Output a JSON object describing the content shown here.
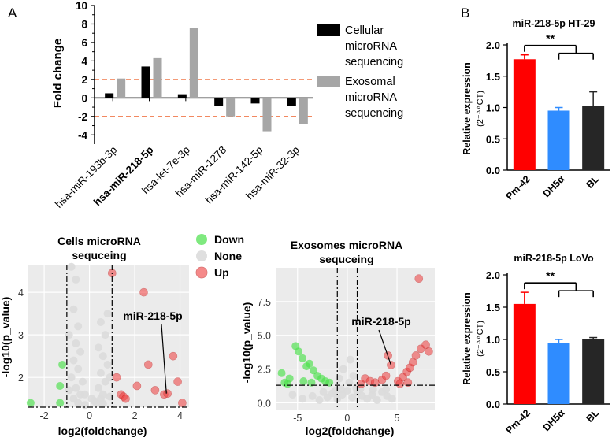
{
  "panel_labels": {
    "a": "A",
    "b": "B"
  },
  "chart_data": [
    {
      "id": "fold-change-bar",
      "type": "bar",
      "ylabel": "Fold change",
      "ylim": [
        -5,
        10
      ],
      "yticks": [
        "10",
        "8",
        "6",
        "4",
        "2",
        "0",
        "-2",
        "-4"
      ],
      "categories": [
        "hsa-miR-193b-3p",
        "hsa-miR-218-5p",
        "hsa-let-7e-3p",
        "hsa-miR-1278",
        "hsa-miR-142-5p",
        "hsa-miR-32-3p"
      ],
      "highlight_category": "hsa-miR-218-5p",
      "series": [
        {
          "name": "Cellular microRNA sequencing",
          "legend_lines": [
            "Cellular",
            "microRNA",
            "sequencing"
          ],
          "color": "#000000",
          "values": [
            0.5,
            3.4,
            0.4,
            -0.9,
            -0.6,
            -0.9
          ]
        },
        {
          "name": "Exosomal microRNA sequencing",
          "legend_lines": [
            "Exosomal",
            "microRNA",
            "sequencing"
          ],
          "color": "#a6a6a6",
          "values": [
            2.1,
            4.3,
            7.6,
            -2.0,
            -3.6,
            -2.8
          ]
        }
      ],
      "threshold_lines": [
        2,
        -2
      ],
      "threshold_color": "#f0784a"
    },
    {
      "id": "ht29-bar",
      "type": "bar",
      "title": "miR-218-5p HT-29",
      "ylabel": "Relative expression",
      "ylabel_sub": "(2⁻ᐞᐞCT)",
      "ylim": [
        0,
        2.0
      ],
      "yticks": [
        "2.0",
        "1.5",
        "1.0",
        "0.5",
        "0.0"
      ],
      "categories": [
        "Pm-42",
        "DH5α",
        "BL"
      ],
      "values": [
        1.77,
        0.95,
        1.02
      ],
      "errors": [
        0.07,
        0.05,
        0.23
      ],
      "colors": [
        "#ff0000",
        "#2f8cff",
        "#262626"
      ],
      "significance": "**"
    },
    {
      "id": "lovo-bar",
      "type": "bar",
      "title": "miR-218-5p LoVo",
      "ylabel": "Relative expression",
      "ylabel_sub": "(2⁻ᐞᐞCT)",
      "ylim": [
        0,
        2.0
      ],
      "yticks": [
        "2.0",
        "1.5",
        "1.0",
        "0.5",
        "0.0"
      ],
      "categories": [
        "Pm-42",
        "DH5α",
        "BL"
      ],
      "values": [
        1.55,
        0.95,
        1.0
      ],
      "errors": [
        0.18,
        0.05,
        0.03
      ],
      "colors": [
        "#ff0000",
        "#2f8cff",
        "#262626"
      ],
      "significance": "**"
    },
    {
      "id": "cells-volcano",
      "type": "scatter",
      "title_lines": [
        "Cells microRNA",
        "sequceing"
      ],
      "xlabel": "log2(foldchange)",
      "ylabel": "-log10(p_value)",
      "xlim": [
        -2.7,
        4.4
      ],
      "ylim": [
        1.3,
        4.65
      ],
      "xticks": [
        "-2",
        "0",
        "2",
        "4"
      ],
      "yticks": [
        "2",
        "3",
        "4"
      ],
      "vlines": [
        -1,
        1
      ],
      "hline": 1.3,
      "annotation": "miR-218-5p",
      "annotation_point": [
        3.4,
        1.62
      ],
      "legend": [
        {
          "label": "Down",
          "color": "#49e049"
        },
        {
          "label": "None",
          "color": "#dcdcdc"
        },
        {
          "label": "Up",
          "color": "#ef3c3c"
        }
      ],
      "points": {
        "down": [
          [
            -2.6,
            1.4
          ],
          [
            -1.2,
            2.3
          ],
          [
            -1.3,
            1.8
          ],
          [
            -1.3,
            1.4
          ]
        ],
        "up": [
          [
            1.0,
            4.45
          ],
          [
            1.2,
            2.0
          ],
          [
            1.4,
            1.6
          ],
          [
            1.5,
            1.55
          ],
          [
            1.6,
            1.5
          ],
          [
            2.1,
            1.8
          ],
          [
            2.4,
            4.0
          ],
          [
            2.6,
            2.3
          ],
          [
            2.9,
            1.7
          ],
          [
            3.3,
            1.6
          ],
          [
            3.45,
            1.62
          ],
          [
            3.7,
            2.5
          ],
          [
            3.9,
            1.9
          ],
          [
            4.1,
            1.4
          ]
        ],
        "none": [
          [
            -0.8,
            4.6
          ],
          [
            -0.6,
            4.3
          ],
          [
            -0.7,
            3.6
          ],
          [
            -0.5,
            3.2
          ],
          [
            -0.6,
            2.8
          ],
          [
            -0.4,
            2.6
          ],
          [
            -0.7,
            2.4
          ],
          [
            -0.5,
            2.2
          ],
          [
            -0.8,
            2.0
          ],
          [
            -0.3,
            1.9
          ],
          [
            -0.6,
            1.75
          ],
          [
            -0.4,
            1.6
          ],
          [
            -0.7,
            1.5
          ],
          [
            -0.5,
            1.4
          ],
          [
            -0.2,
            1.35
          ],
          [
            0.3,
            1.4
          ],
          [
            0.5,
            1.5
          ],
          [
            0.6,
            1.6
          ],
          [
            0.4,
            1.75
          ],
          [
            0.7,
            1.9
          ],
          [
            0.5,
            2.1
          ],
          [
            0.8,
            2.3
          ],
          [
            0.6,
            2.5
          ],
          [
            0.4,
            2.7
          ],
          [
            0.7,
            3.0
          ],
          [
            0.5,
            3.3
          ],
          [
            0.8,
            3.5
          ],
          [
            0.6,
            1.38
          ],
          [
            0.2,
            1.45
          ],
          [
            0.9,
            1.55
          ],
          [
            -0.9,
            1.7
          ],
          [
            -0.2,
            1.6
          ],
          [
            0.1,
            1.5
          ],
          [
            0.9,
            2.0
          ],
          [
            -0.9,
            3.0
          ]
        ]
      }
    },
    {
      "id": "exosomes-volcano",
      "type": "scatter",
      "title_lines": [
        "Exosomes microRNA",
        "sequceing"
      ],
      "xlabel": "log2(foldchange)",
      "ylabel": "-log10(p_value)",
      "xlim": [
        -7.2,
        8.8
      ],
      "ylim": [
        -0.5,
        10
      ],
      "xticks": [
        "-5",
        "0",
        "5"
      ],
      "yticks": [
        "0.0",
        "2.5",
        "5.0",
        "7.5"
      ],
      "vlines": [
        -1,
        1
      ],
      "hline": 1.3,
      "annotation": "miR-218-5p",
      "annotation_point": [
        4.4,
        2.8
      ],
      "points": {
        "down": [
          [
            -6.6,
            2.2
          ],
          [
            -6.3,
            1.5
          ],
          [
            -5.8,
            1.8
          ],
          [
            -5.2,
            4.2
          ],
          [
            -4.9,
            3.8
          ],
          [
            -4.5,
            3.3
          ],
          [
            -4.1,
            2.7
          ],
          [
            -3.8,
            2.9
          ],
          [
            -3.4,
            2.4
          ],
          [
            -3.0,
            2.0
          ],
          [
            -2.6,
            1.8
          ],
          [
            -2.2,
            1.6
          ],
          [
            -1.8,
            1.5
          ],
          [
            -4.4,
            1.6
          ],
          [
            -3.6,
            1.5
          ],
          [
            -6.0,
            1.4
          ]
        ],
        "up": [
          [
            1.4,
            1.4
          ],
          [
            1.8,
            1.8
          ],
          [
            2.3,
            1.6
          ],
          [
            2.8,
            1.5
          ],
          [
            3.5,
            1.7
          ],
          [
            3.9,
            2.0
          ],
          [
            4.4,
            2.8
          ],
          [
            4.1,
            3.5
          ],
          [
            5.1,
            1.6
          ],
          [
            5.6,
            1.9
          ],
          [
            6.0,
            2.3
          ],
          [
            6.3,
            2.6
          ],
          [
            6.6,
            3.0
          ],
          [
            6.9,
            3.5
          ],
          [
            7.4,
            4.0
          ],
          [
            7.9,
            4.3
          ],
          [
            8.2,
            3.8
          ],
          [
            7.2,
            9.2
          ],
          [
            5.3,
            1.4
          ],
          [
            6.1,
            1.5
          ]
        ],
        "none": [
          [
            -4.5,
            0.3
          ],
          [
            -3.5,
            0.5
          ],
          [
            -2.8,
            0.2
          ],
          [
            -2.0,
            0.4
          ],
          [
            -1.5,
            0.7
          ],
          [
            -1.0,
            0.3
          ],
          [
            -0.5,
            0.6
          ],
          [
            0.0,
            0.9
          ],
          [
            0.5,
            0.4
          ],
          [
            1.0,
            0.8
          ],
          [
            1.5,
            0.5
          ],
          [
            2.0,
            0.3
          ],
          [
            2.5,
            0.6
          ],
          [
            3.0,
            0.2
          ],
          [
            3.5,
            0.8
          ],
          [
            4.0,
            0.5
          ],
          [
            4.5,
            0.3
          ],
          [
            -0.8,
            1.8
          ],
          [
            -0.4,
            2.5
          ],
          [
            0.3,
            3.2
          ],
          [
            0.6,
            2.0
          ],
          [
            0.9,
            1.1
          ],
          [
            -0.6,
            1.0
          ],
          [
            0.2,
            1.5
          ],
          [
            -1.2,
            0.9
          ],
          [
            1.3,
            1.0
          ],
          [
            -2.4,
            0.8
          ],
          [
            2.6,
            1.0
          ],
          [
            3.9,
            1.0
          ],
          [
            -5.5,
            0.6
          ]
        ]
      }
    }
  ]
}
